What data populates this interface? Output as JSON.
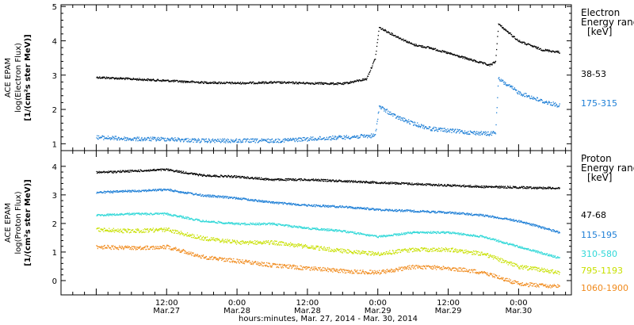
{
  "chart_data": [
    {
      "type": "scatter",
      "panel": "top",
      "ylabel": [
        "ACE EPAM",
        "log(Electron Flux)",
        "[1/(cm²s ster MeV)]"
      ],
      "ylim": [
        0.8,
        5.05
      ],
      "yticks": [
        "1",
        "2",
        "3",
        "4",
        "5"
      ],
      "ytick_values": [
        1,
        2,
        3,
        4,
        5
      ],
      "legend_title": [
        "Electron",
        "Energy range",
        "[keV]"
      ],
      "series": [
        {
          "name": "38-53",
          "color": "#000000",
          "x": [
            "2014-03-27T00:00",
            "2014-03-27T06:00",
            "2014-03-27T12:00",
            "2014-03-27T18:00",
            "2014-03-28T00:00",
            "2014-03-28T06:00",
            "2014-03-28T12:00",
            "2014-03-28T18:00",
            "2014-03-28T22:00",
            "2014-03-28T23:30",
            "2014-03-29T00:10",
            "2014-03-29T03:00",
            "2014-03-29T06:00",
            "2014-03-29T09:00",
            "2014-03-29T12:00",
            "2014-03-29T15:00",
            "2014-03-29T19:00",
            "2014-03-29T20:00",
            "2014-03-29T20:30",
            "2014-03-30T00:00",
            "2014-03-30T04:00",
            "2014-03-30T07:00"
          ],
          "y": [
            2.95,
            2.9,
            2.85,
            2.8,
            2.78,
            2.8,
            2.78,
            2.76,
            2.9,
            3.5,
            4.4,
            4.15,
            3.9,
            3.8,
            3.65,
            3.5,
            3.3,
            3.4,
            4.5,
            4.0,
            3.75,
            3.68
          ]
        },
        {
          "name": "175-315",
          "color": "#1e7fd6",
          "x": [
            "2014-03-27T00:00",
            "2014-03-27T06:00",
            "2014-03-27T12:00",
            "2014-03-27T18:00",
            "2014-03-28T00:00",
            "2014-03-28T06:00",
            "2014-03-28T12:00",
            "2014-03-28T18:00",
            "2014-03-28T23:30",
            "2014-03-29T00:10",
            "2014-03-29T03:00",
            "2014-03-29T06:00",
            "2014-03-29T09:00",
            "2014-03-29T12:00",
            "2014-03-29T15:00",
            "2014-03-29T19:00",
            "2014-03-29T20:00",
            "2014-03-29T20:30",
            "2014-03-30T00:00",
            "2014-03-30T04:00",
            "2014-03-30T07:00"
          ],
          "y": [
            1.2,
            1.15,
            1.15,
            1.1,
            1.1,
            1.1,
            1.15,
            1.2,
            1.25,
            2.1,
            1.8,
            1.6,
            1.45,
            1.4,
            1.35,
            1.3,
            1.35,
            2.9,
            2.5,
            2.25,
            2.12
          ]
        }
      ],
      "legend_labels": [
        "38-53",
        "175-315"
      ]
    },
    {
      "type": "scatter",
      "panel": "bottom",
      "ylabel": [
        "ACE EPAM",
        "log(Proton Flux)",
        "[1/(cm²s ster MeV)]"
      ],
      "ylim": [
        -0.5,
        4.55
      ],
      "yticks": [
        "0",
        "1",
        "2",
        "3",
        "4"
      ],
      "ytick_values": [
        0,
        1,
        2,
        3,
        4
      ],
      "legend_title": [
        "Proton",
        "Energy range",
        "[keV]"
      ],
      "series": [
        {
          "name": "47-68",
          "color": "#000000",
          "x": [
            "2014-03-27T00:00",
            "2014-03-27T06:00",
            "2014-03-27T12:00",
            "2014-03-27T18:00",
            "2014-03-28T00:00",
            "2014-03-28T06:00",
            "2014-03-28T12:00",
            "2014-03-28T18:00",
            "2014-03-29T00:00",
            "2014-03-29T06:00",
            "2014-03-29T12:00",
            "2014-03-29T18:00",
            "2014-03-30T00:00",
            "2014-03-30T07:00"
          ],
          "y": [
            3.8,
            3.85,
            3.9,
            3.7,
            3.65,
            3.55,
            3.55,
            3.5,
            3.45,
            3.4,
            3.35,
            3.3,
            3.28,
            3.25
          ]
        },
        {
          "name": "115-195",
          "color": "#1e7fd6",
          "x": [
            "2014-03-27T00:00",
            "2014-03-27T06:00",
            "2014-03-27T12:00",
            "2014-03-27T18:00",
            "2014-03-28T00:00",
            "2014-03-28T06:00",
            "2014-03-28T12:00",
            "2014-03-28T18:00",
            "2014-03-29T00:00",
            "2014-03-29T06:00",
            "2014-03-29T12:00",
            "2014-03-29T18:00",
            "2014-03-30T00:00",
            "2014-03-30T07:00"
          ],
          "y": [
            3.1,
            3.15,
            3.2,
            3.0,
            2.9,
            2.75,
            2.65,
            2.6,
            2.5,
            2.45,
            2.4,
            2.3,
            2.1,
            1.7
          ]
        },
        {
          "name": "310-580",
          "color": "#30d8d8",
          "x": [
            "2014-03-27T00:00",
            "2014-03-27T06:00",
            "2014-03-27T12:00",
            "2014-03-27T18:00",
            "2014-03-28T00:00",
            "2014-03-28T06:00",
            "2014-03-28T12:00",
            "2014-03-28T18:00",
            "2014-03-29T00:00",
            "2014-03-29T06:00",
            "2014-03-29T12:00",
            "2014-03-29T18:00",
            "2014-03-30T00:00",
            "2014-03-30T07:00"
          ],
          "y": [
            2.3,
            2.35,
            2.35,
            2.1,
            2.0,
            2.0,
            1.85,
            1.75,
            1.55,
            1.7,
            1.7,
            1.55,
            1.2,
            0.8
          ]
        },
        {
          "name": "795-1193",
          "color": "#c8e000",
          "x": [
            "2014-03-27T00:00",
            "2014-03-27T06:00",
            "2014-03-27T12:00",
            "2014-03-27T18:00",
            "2014-03-28T00:00",
            "2014-03-28T06:00",
            "2014-03-28T12:00",
            "2014-03-28T18:00",
            "2014-03-29T00:00",
            "2014-03-29T06:00",
            "2014-03-29T12:00",
            "2014-03-29T18:00",
            "2014-03-30T00:00",
            "2014-03-30T07:00"
          ],
          "y": [
            1.8,
            1.75,
            1.8,
            1.5,
            1.35,
            1.35,
            1.2,
            1.05,
            0.95,
            1.1,
            1.1,
            0.95,
            0.5,
            0.3
          ]
        },
        {
          "name": "1060-1900",
          "color": "#f08a1c",
          "x": [
            "2014-03-27T00:00",
            "2014-03-27T06:00",
            "2014-03-27T12:00",
            "2014-03-27T18:00",
            "2014-03-28T00:00",
            "2014-03-28T06:00",
            "2014-03-28T12:00",
            "2014-03-28T18:00",
            "2014-03-29T00:00",
            "2014-03-29T06:00",
            "2014-03-29T12:00",
            "2014-03-29T18:00",
            "2014-03-30T00:00",
            "2014-03-30T07:00"
          ],
          "y": [
            1.2,
            1.15,
            1.2,
            0.85,
            0.7,
            0.55,
            0.45,
            0.35,
            0.3,
            0.5,
            0.45,
            0.3,
            -0.1,
            -0.2
          ]
        }
      ],
      "legend_labels": [
        "47-68",
        "115-195",
        "310-580",
        "795-1193",
        "1060-1900"
      ]
    }
  ],
  "xaxis": {
    "range": [
      "2014-03-26T18:00",
      "2014-03-30T09:00"
    ],
    "major_ticks": [
      {
        "time": "2014-03-27T12:00",
        "top": "12:00",
        "bottom": "Mar.27"
      },
      {
        "time": "2014-03-28T00:00",
        "top": "0:00",
        "bottom": "Mar.28"
      },
      {
        "time": "2014-03-28T12:00",
        "top": "12:00",
        "bottom": "Mar.28"
      },
      {
        "time": "2014-03-29T00:00",
        "top": "0:00",
        "bottom": "Mar.29"
      },
      {
        "time": "2014-03-29T12:00",
        "top": "12:00",
        "bottom": "Mar.29"
      },
      {
        "time": "2014-03-30T00:00",
        "top": "0:00",
        "bottom": "Mar.30"
      }
    ],
    "label": "hours:minutes, Mar. 27, 2014 - Mar. 30, 2014"
  }
}
